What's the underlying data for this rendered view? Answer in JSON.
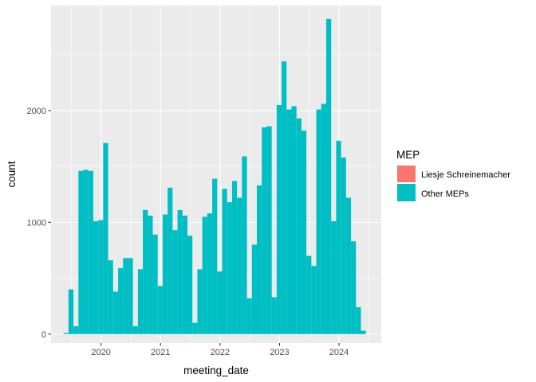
{
  "chart_data": {
    "type": "bar",
    "xlabel": "meeting_date",
    "ylabel": "count",
    "ylim": [
      -80,
      2940
    ],
    "xlim": [
      2019.16,
      2024.71
    ],
    "x_ticks": [
      {
        "value": 2020,
        "label": "2020"
      },
      {
        "value": 2021,
        "label": "2021"
      },
      {
        "value": 2022,
        "label": "2022"
      },
      {
        "value": 2023,
        "label": "2023"
      },
      {
        "value": 2024,
        "label": "2024"
      }
    ],
    "y_ticks": [
      {
        "value": 0,
        "label": "0"
      },
      {
        "value": 1000,
        "label": "1000"
      },
      {
        "value": 2000,
        "label": "2000"
      }
    ],
    "grid": true,
    "bin_start": 2019.37,
    "bin_width": 0.0833,
    "legend": {
      "title": "MEP",
      "placement": "right",
      "entries": [
        {
          "name": "Liesje Schreinemacher",
          "color": "#F8766D"
        },
        {
          "name": "Other MEPs",
          "color": "#00BFC4"
        }
      ]
    },
    "series": [
      {
        "name": "Liesje Schreinemacher",
        "color": "#F8766D",
        "values": [
          0,
          0,
          0,
          0,
          0,
          0,
          0,
          0,
          0,
          0,
          0,
          0,
          0,
          0,
          0,
          0,
          0,
          0,
          0,
          0,
          0,
          0,
          0,
          0,
          0,
          0,
          0,
          0,
          0,
          0,
          0,
          0,
          0,
          0,
          0,
          0,
          0,
          0,
          0,
          0,
          0,
          0,
          0,
          0,
          0,
          0,
          0,
          0,
          0,
          0,
          0,
          0,
          0,
          0,
          0,
          0,
          0,
          0,
          0,
          0,
          0,
          0,
          0,
          0,
          0,
          0
        ]
      },
      {
        "name": "Other MEPs",
        "color": "#00BFC4",
        "values": [
          10,
          400,
          70,
          1460,
          1470,
          1460,
          1010,
          1020,
          1710,
          660,
          380,
          590,
          680,
          680,
          70,
          580,
          1110,
          1060,
          890,
          430,
          1070,
          1310,
          930,
          1110,
          1060,
          880,
          100,
          580,
          1050,
          1080,
          1390,
          560,
          1300,
          1180,
          1370,
          1220,
          1590,
          320,
          800,
          1330,
          1850,
          1860,
          330,
          2050,
          2440,
          2010,
          2040,
          1930,
          1820,
          700,
          610,
          2010,
          2060,
          2820,
          1010,
          1730,
          1580,
          1220,
          830,
          240,
          30,
          0,
          0,
          0,
          0,
          0
        ]
      }
    ]
  }
}
